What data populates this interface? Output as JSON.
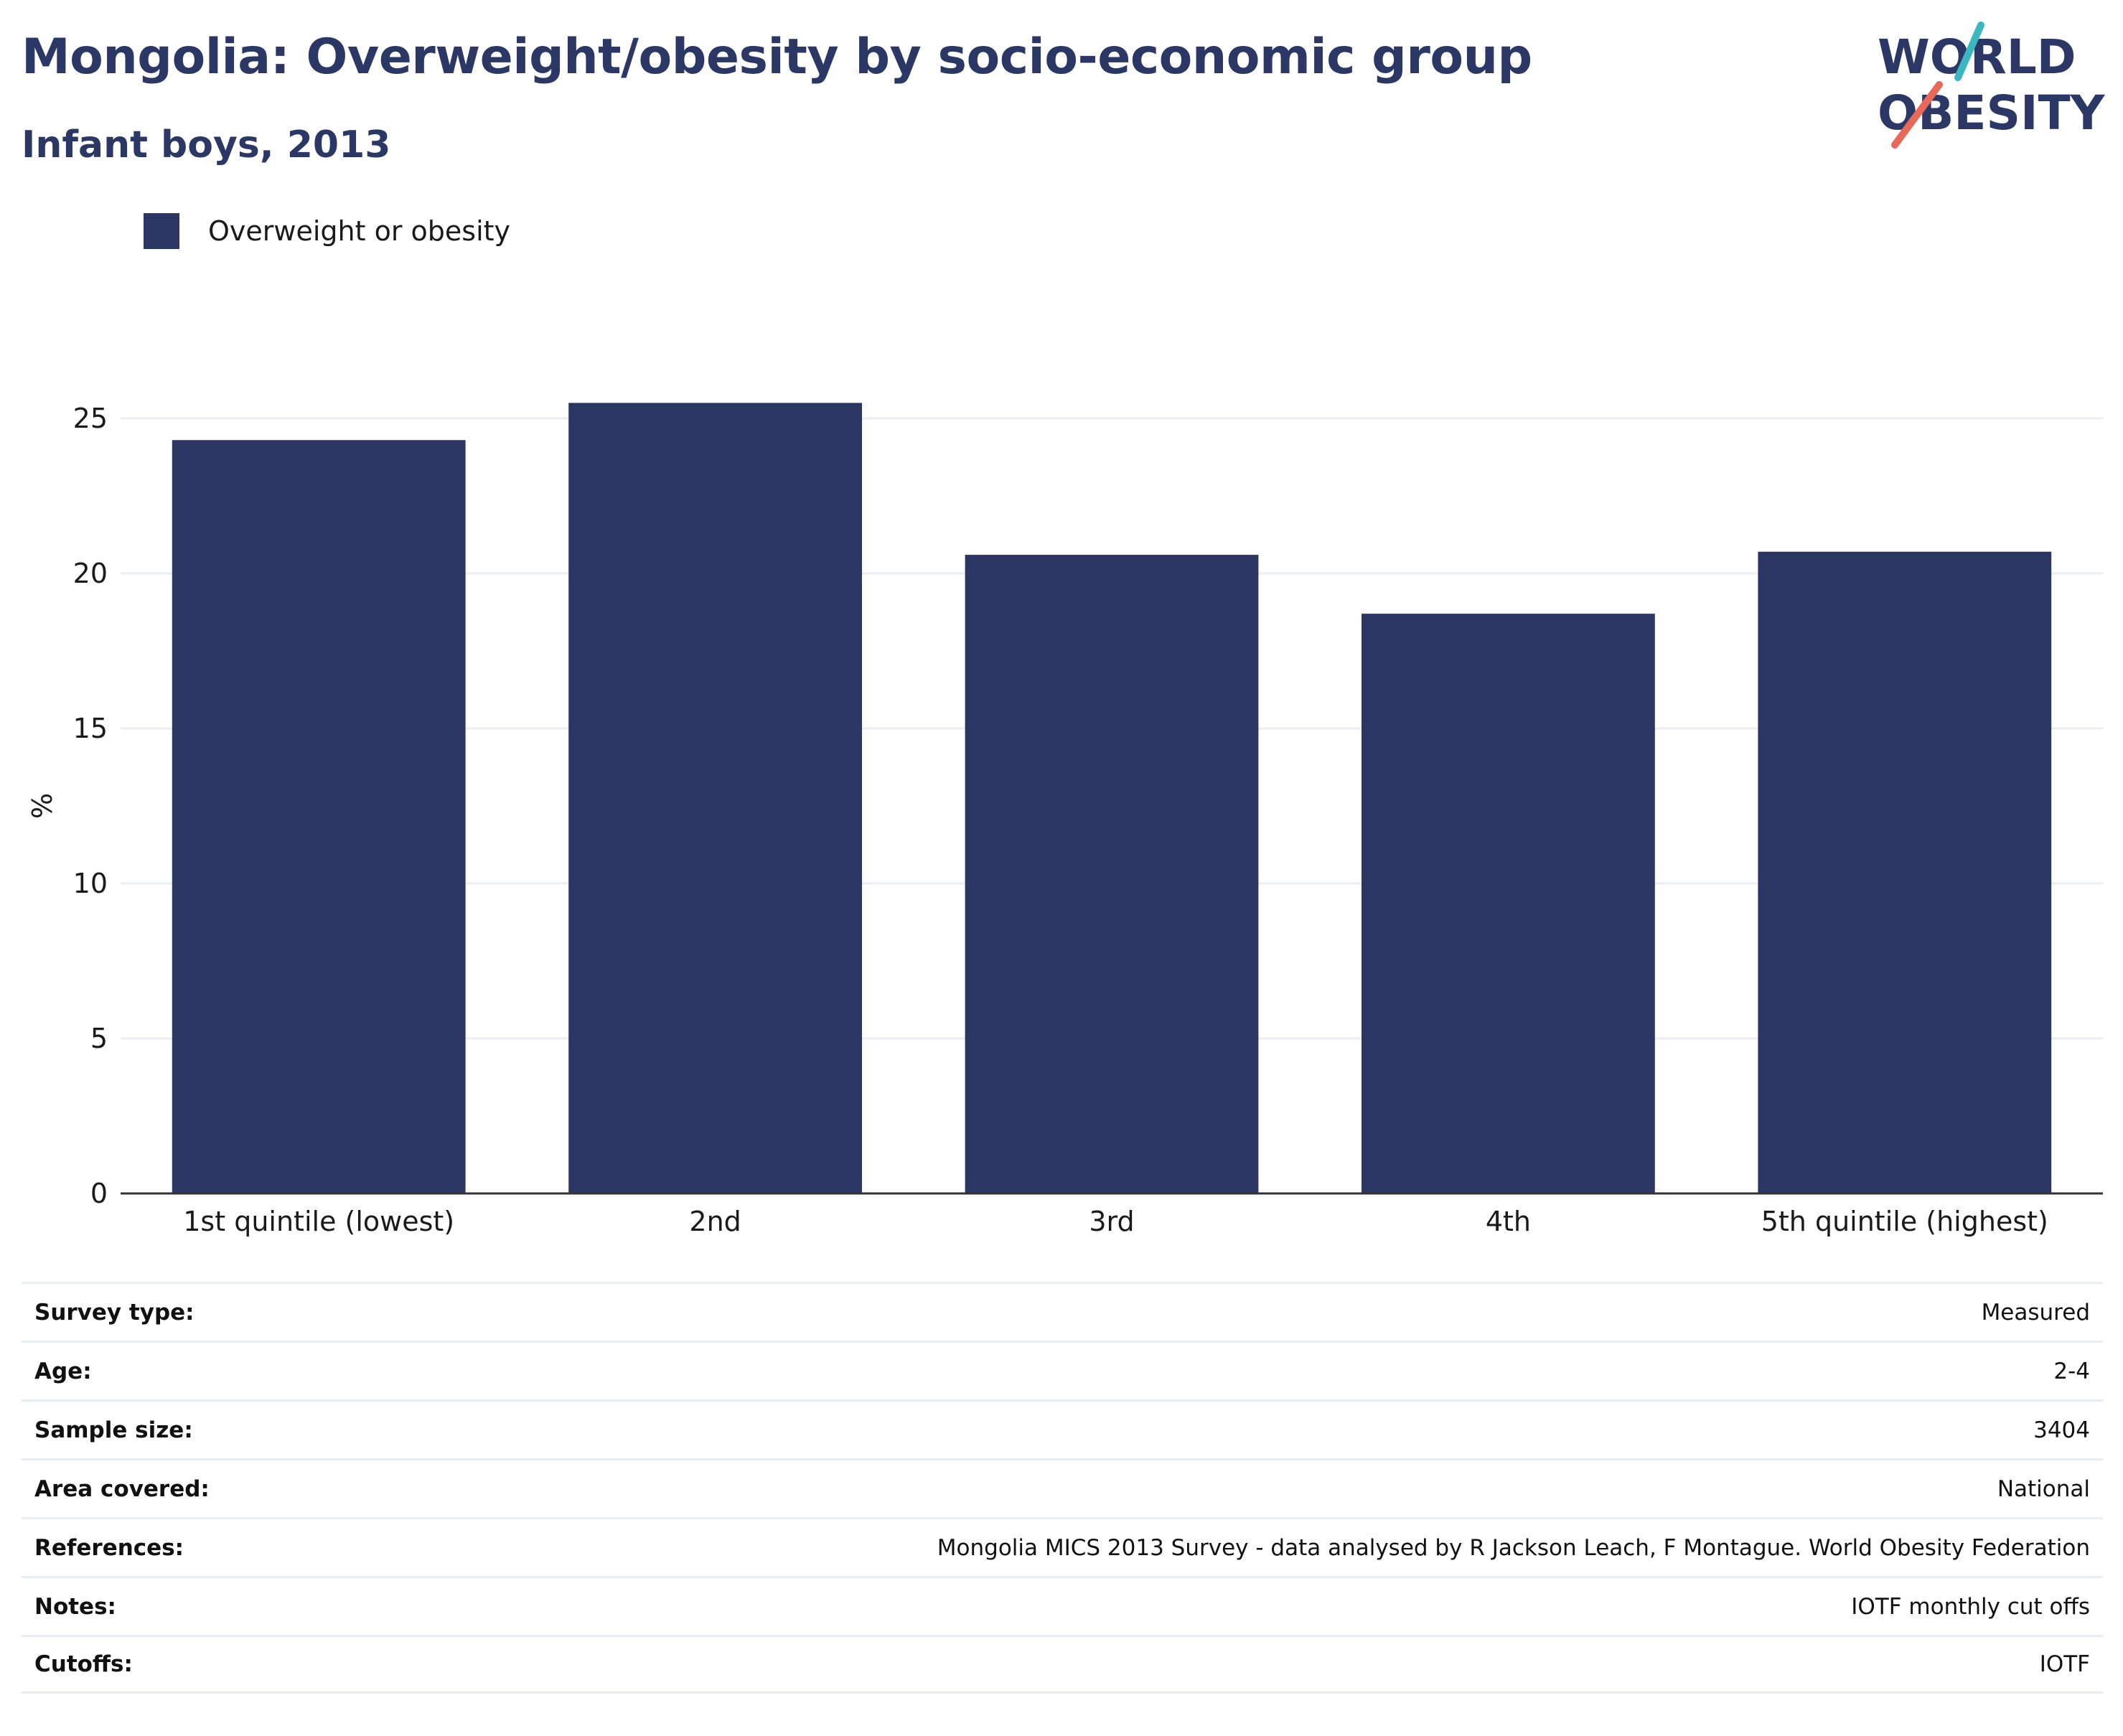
{
  "header": {
    "title": "Mongolia: Overweight/obesity by socio-economic group",
    "subtitle": "Infant boys, 2013"
  },
  "logo": {
    "line1": "WORLD",
    "line2": "OBESITY",
    "text_color": "#2b3764",
    "slash_colors": [
      "#3ab7c0",
      "#e8695a"
    ]
  },
  "legend": {
    "label": "Overweight or obesity",
    "color": "#2b3662"
  },
  "chart_data": {
    "type": "bar",
    "title": "Mongolia: Overweight/obesity by socio-economic group",
    "subtitle": "Infant boys, 2013",
    "categories": [
      "1st quintile (lowest)",
      "2nd",
      "3rd",
      "4th",
      "5th quintile (highest)"
    ],
    "series": [
      {
        "name": "Overweight or obesity",
        "values": [
          24.3,
          25.5,
          20.6,
          18.7,
          20.7
        ],
        "color": "#2b3662"
      }
    ],
    "xlabel": "",
    "ylabel": "%",
    "ylim": [
      0,
      25.5
    ],
    "yticks": [
      0,
      5,
      10,
      15,
      20,
      25
    ],
    "grid": true,
    "legend_position": "top-left"
  },
  "info": [
    {
      "label": "Survey type:",
      "value": "Measured"
    },
    {
      "label": "Age:",
      "value": "2-4"
    },
    {
      "label": "Sample size:",
      "value": "3404"
    },
    {
      "label": "Area covered:",
      "value": "National"
    },
    {
      "label": "References:",
      "value": "Mongolia MICS 2013 Survey - data analysed by R Jackson Leach, F Montague. World Obesity Federation"
    },
    {
      "label": "Notes:",
      "value": "IOTF monthly cut offs"
    },
    {
      "label": "Cutoffs:",
      "value": "IOTF"
    }
  ]
}
